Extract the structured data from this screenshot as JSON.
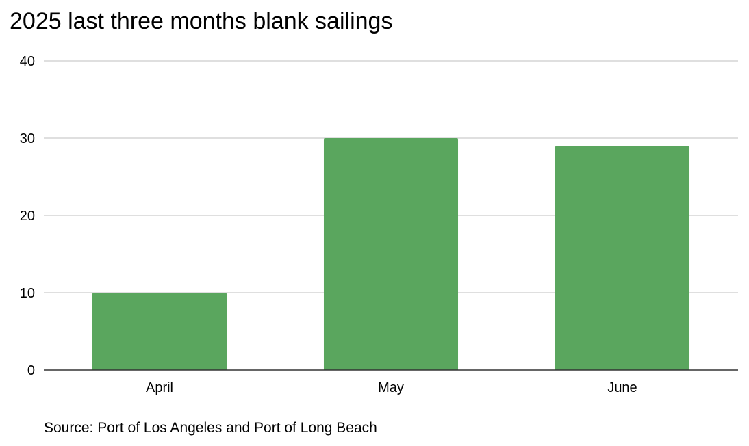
{
  "chart_data": {
    "type": "bar",
    "title": "2025 last three months blank sailings",
    "categories": [
      "April",
      "May",
      "June"
    ],
    "values": [
      10,
      30,
      29
    ],
    "xlabel": "",
    "ylabel": "",
    "ylim": [
      0,
      40
    ],
    "yticks": [
      0,
      10,
      20,
      30,
      40
    ],
    "grid": true,
    "legend": "none",
    "bar_color": "#5aa65e",
    "gridline_color": "#cccccc",
    "axis_color": "#333333",
    "source": "Source: Port of Los Angeles and Port of Long Beach"
  }
}
